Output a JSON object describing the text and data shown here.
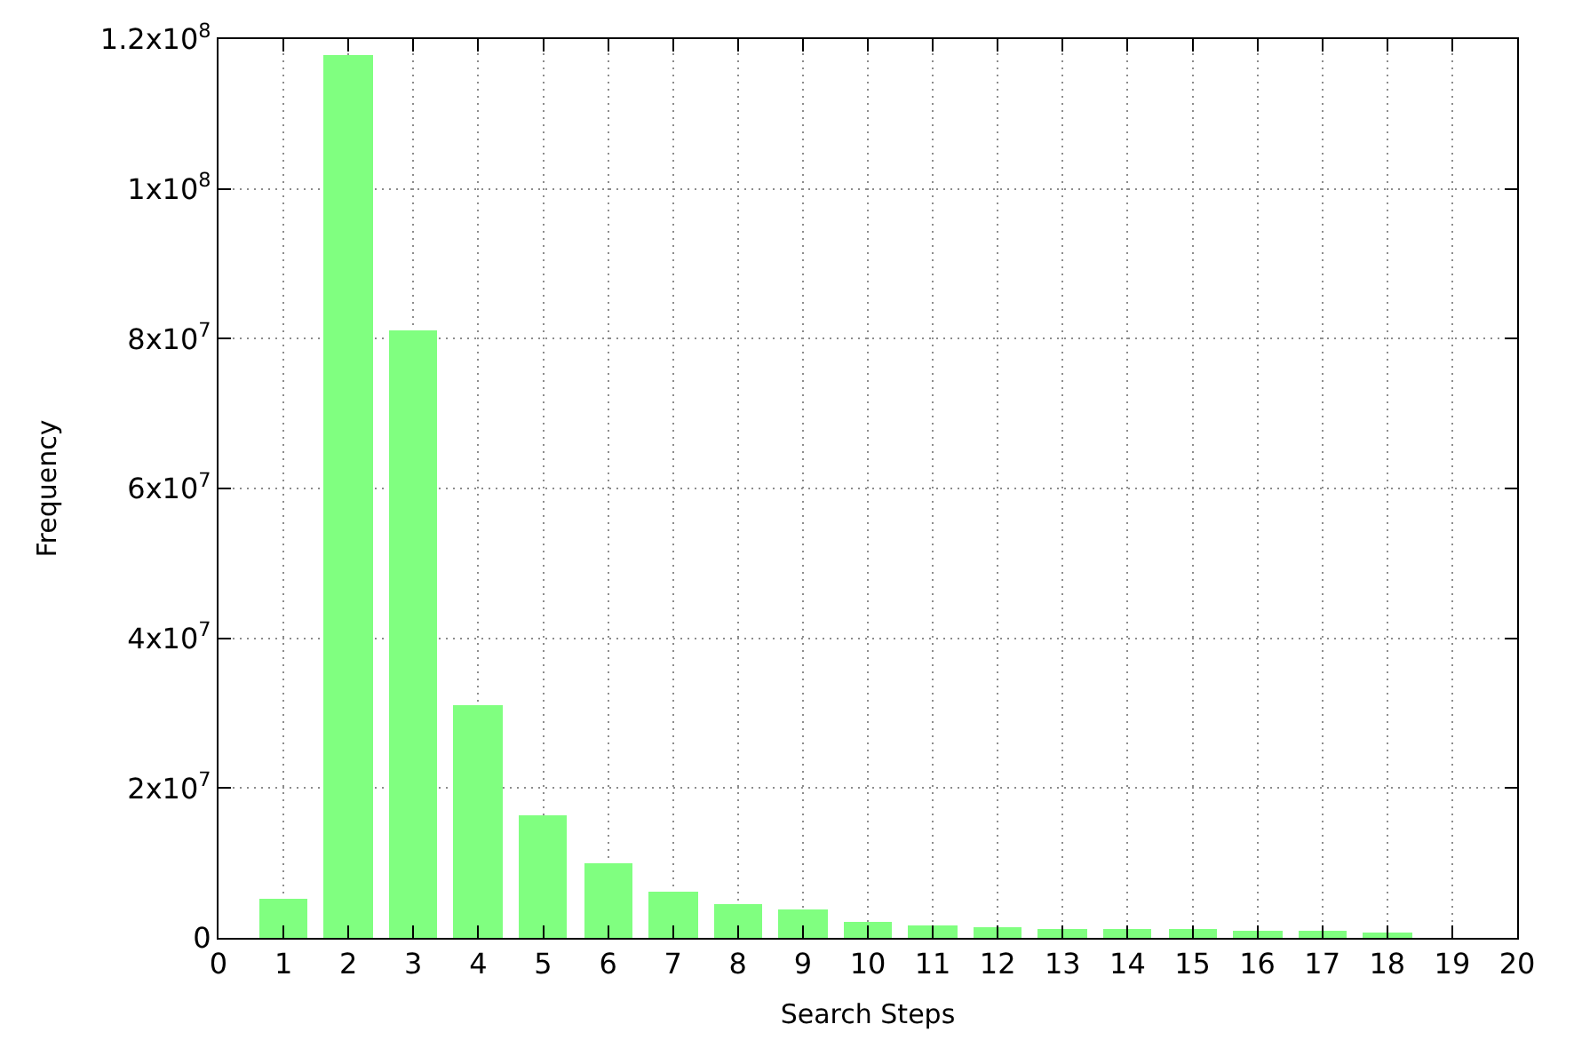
{
  "chart_data": {
    "type": "bar",
    "xlabel": "Search Steps",
    "ylabel": "Frequency",
    "x": [
      1,
      2,
      3,
      4,
      5,
      6,
      7,
      8,
      9,
      10,
      11,
      12,
      13,
      14,
      15,
      16,
      17,
      18
    ],
    "values": [
      5300000,
      117800000,
      81000000,
      31100000,
      16400000,
      10000000,
      6200000,
      4600000,
      3900000,
      2200000,
      1600000,
      1400000,
      1300000,
      1200000,
      1100000,
      1000000,
      1000000,
      800000
    ],
    "color": "#80ff80",
    "xlim": [
      0,
      20
    ],
    "xticks": [
      0,
      1,
      2,
      3,
      4,
      5,
      6,
      7,
      8,
      9,
      10,
      11,
      12,
      13,
      14,
      15,
      16,
      17,
      18,
      19,
      20
    ],
    "ylim": [
      0,
      120000000
    ],
    "yticks": [
      0,
      {
        "value": 20000000,
        "label": "2x10$^{7}$"
      },
      {
        "value": 40000000,
        "label": "4x10$^{7}$"
      },
      {
        "value": 60000000,
        "label": "6x10$^{7}$"
      },
      {
        "value": 80000000,
        "label": "8x10$^{7}$"
      },
      {
        "value": 100000000,
        "label": "1x10$^{8}$"
      },
      {
        "value": 120000000,
        "label": "1.2x10$^{8}$"
      }
    ],
    "grid": true
  }
}
